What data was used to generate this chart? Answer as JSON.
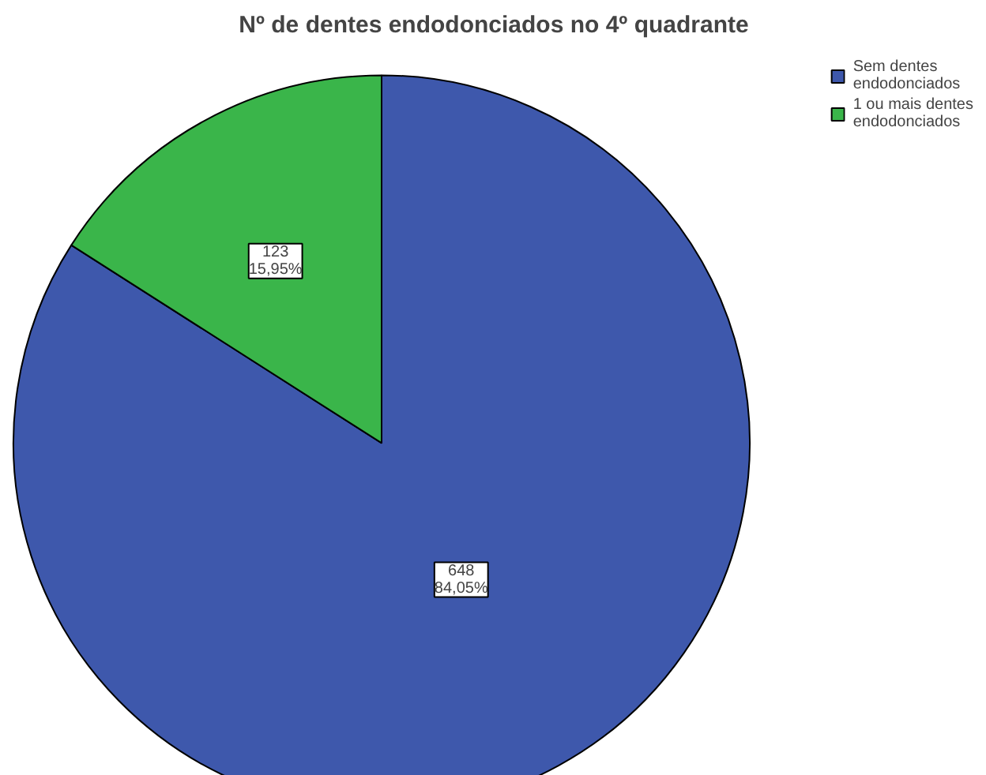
{
  "chart_data": {
    "type": "pie",
    "title": "Nº de dentes endodonciados no 4º quadrante",
    "categories": [
      "Sem dentes endodonciados",
      "1 ou mais dentes endodonciados"
    ],
    "values": [
      648,
      123
    ],
    "colors": [
      "#3e58ac",
      "#3ab54a"
    ],
    "value_labels": [
      "648\n84,05%",
      "123\n15,95%"
    ],
    "legend": "top right"
  }
}
